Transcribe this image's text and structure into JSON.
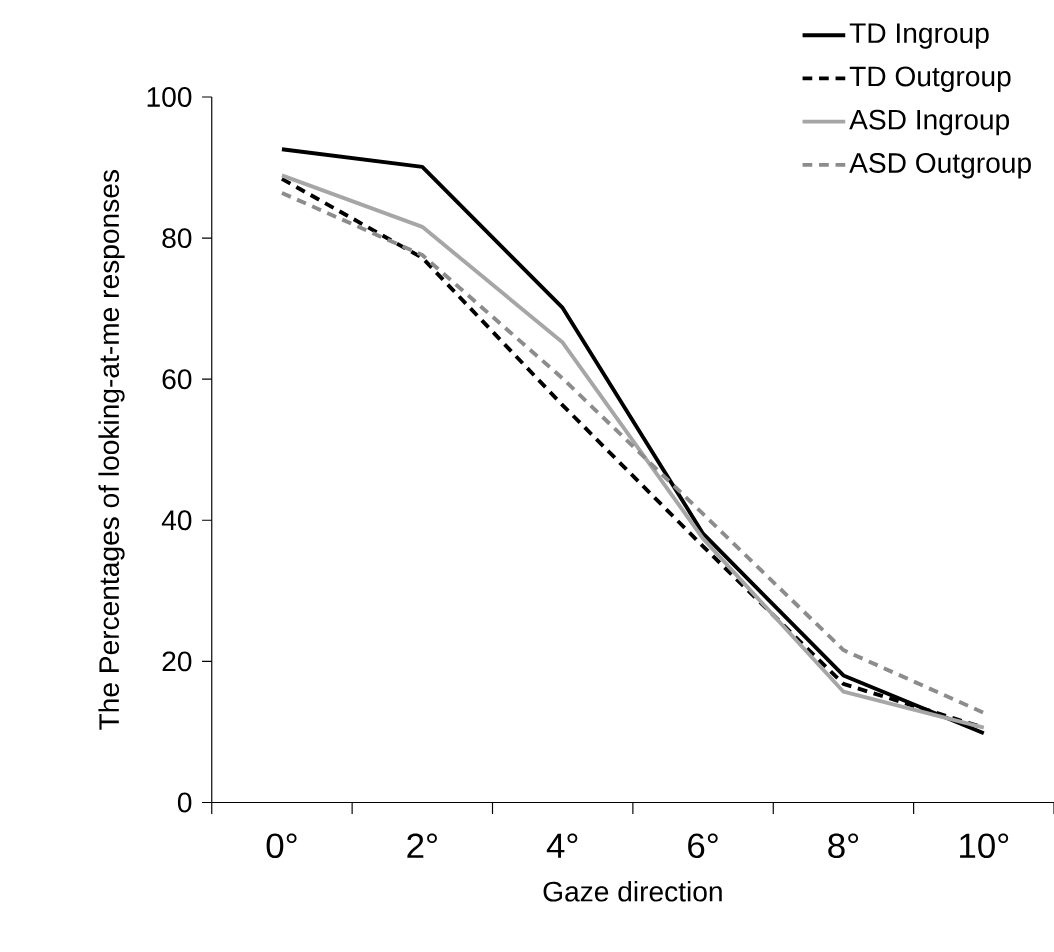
{
  "chart_data": {
    "type": "line",
    "xlabel": "Gaze direction",
    "ylabel": "The Percentages of looking-at-me responses",
    "categories": [
      "0°",
      "2°",
      "4°",
      "6°",
      "8°",
      "10°"
    ],
    "ylim": [
      0,
      100
    ],
    "yticks": [
      0,
      20,
      40,
      60,
      80,
      100
    ],
    "legend": "top right",
    "series": [
      {
        "name": "TD Ingroup",
        "color": "#000000",
        "line_style": "solid",
        "values": [
          92.6,
          90.1,
          70.1,
          38.1,
          18.0,
          9.8
        ]
      },
      {
        "name": "TD Outgroup",
        "color": "#000000",
        "line_style": "dashed",
        "values": [
          88.4,
          77.2,
          56.3,
          36.3,
          16.8,
          10.6
        ]
      },
      {
        "name": "ASD Ingroup",
        "color": "#a6a6a6",
        "line_style": "solid",
        "values": [
          88.9,
          81.6,
          65.2,
          37.4,
          15.7,
          10.6
        ]
      },
      {
        "name": "ASD Outgroup",
        "color": "#8c8c8c",
        "line_style": "dashed",
        "values": [
          86.4,
          77.6,
          60.1,
          40.9,
          21.6,
          12.7
        ]
      }
    ]
  }
}
